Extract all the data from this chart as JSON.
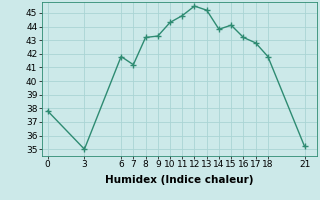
{
  "x": [
    0,
    3,
    6,
    7,
    8,
    9,
    10,
    11,
    12,
    13,
    14,
    15,
    16,
    17,
    18,
    21
  ],
  "y": [
    37.8,
    35.0,
    41.8,
    41.2,
    43.2,
    43.3,
    44.3,
    44.8,
    45.5,
    45.2,
    43.8,
    44.1,
    43.2,
    42.8,
    41.8,
    35.2
  ],
  "xticks": [
    0,
    3,
    6,
    7,
    8,
    9,
    10,
    11,
    12,
    13,
    14,
    15,
    16,
    17,
    18,
    21
  ],
  "yticks": [
    35,
    36,
    37,
    38,
    39,
    40,
    41,
    42,
    43,
    44,
    45
  ],
  "ylim": [
    34.5,
    45.8
  ],
  "xlim": [
    -0.5,
    22
  ],
  "xlabel": "Humidex (Indice chaleur)",
  "line_color": "#2e8b72",
  "bg_color": "#cce9e9",
  "grid_color": "#aad4d4",
  "marker": "+",
  "markersize": 4,
  "linewidth": 1.0,
  "tick_fontsize": 6.5,
  "xlabel_fontsize": 7.5
}
